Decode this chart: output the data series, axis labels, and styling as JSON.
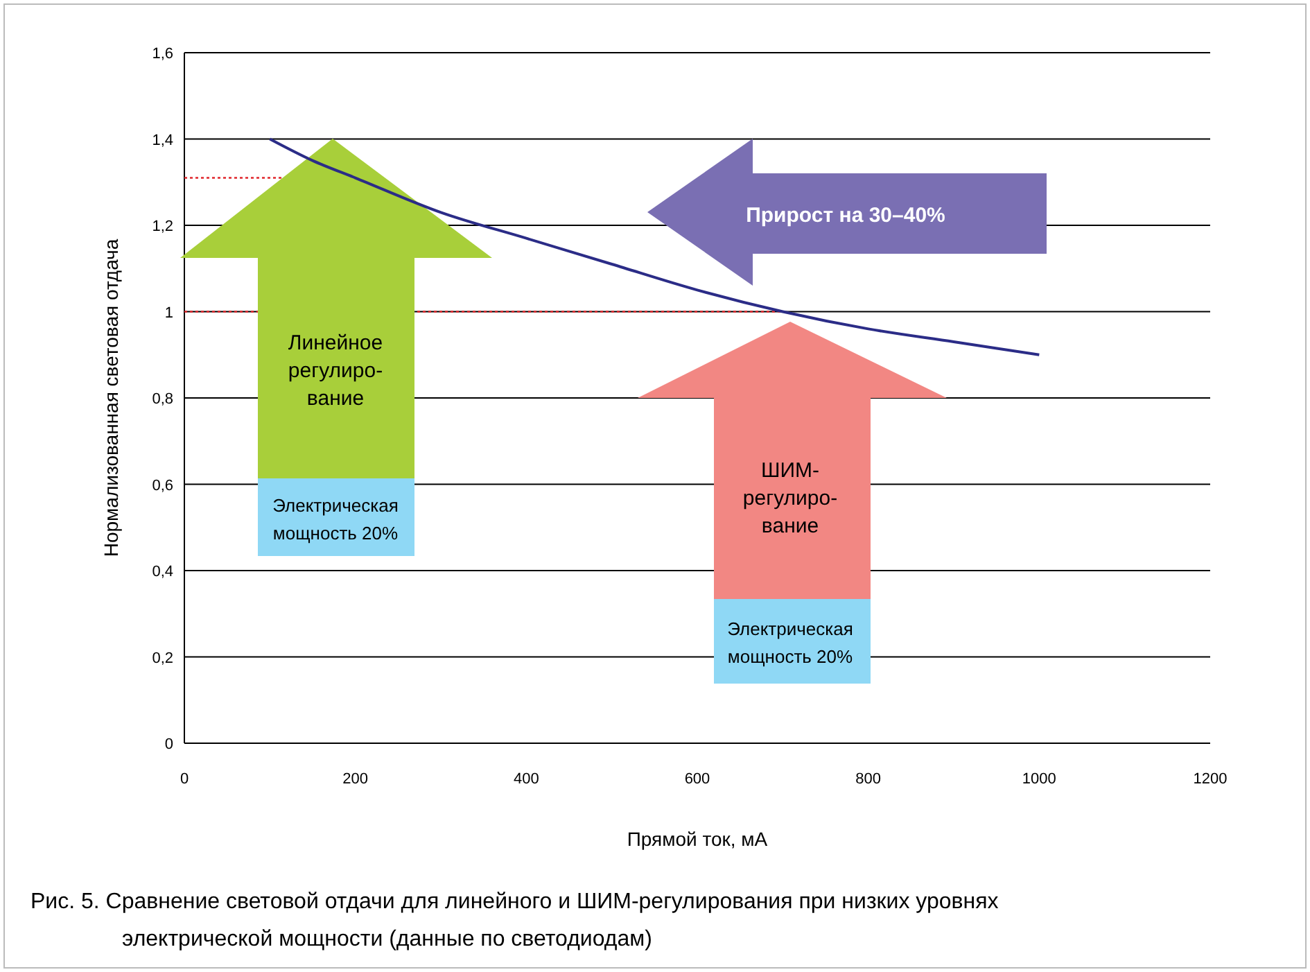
{
  "chart_data": {
    "type": "line",
    "title": "Рис. 5. Сравнение световой отдачи для линейного и ШИМ-регулирования при низких уровнях электрической мощности (данные по светодиодам)",
    "xlabel": "Прямой ток, мА",
    "ylabel": "Нормализованная световая отдача",
    "x": [
      100,
      150,
      200,
      300,
      400,
      500,
      600,
      700,
      800,
      900,
      1000
    ],
    "series": [
      {
        "color": "#2b2c87",
        "values": [
          1.4,
          1.35,
          1.31,
          1.23,
          1.17,
          1.11,
          1.05,
          1.0,
          0.96,
          0.93,
          0.9
        ]
      }
    ],
    "xlim": [
      0,
      1200
    ],
    "xticks": [
      0,
      200,
      400,
      600,
      800,
      1000,
      1200
    ],
    "ylim": [
      0,
      1.6
    ],
    "yticks": [
      0,
      {
        "value": 0.2,
        "label": "0,2"
      },
      {
        "value": 0.4,
        "label": "0,4"
      },
      {
        "value": 0.6,
        "label": "0,6"
      },
      {
        "value": 0.8,
        "label": "0,8"
      },
      1,
      {
        "value": 1.2,
        "label": "1,2"
      },
      {
        "value": 1.4,
        "label": "1,4"
      },
      {
        "value": 1.6,
        "label": "1,6"
      }
    ],
    "grid": "y",
    "marker": "none",
    "line_style": "solid",
    "ref_lines": [
      {
        "axis": "y",
        "value": 1.31,
        "color": "#e0262b",
        "line_style": "dotted"
      },
      {
        "axis": "y",
        "value": 1,
        "color": "#e0262b",
        "line_style": "dotted"
      }
    ],
    "annotations": [
      "Прирост на 30–40%",
      "Линейное\nрегулиро-\nвание",
      "Электрическая\nмощность 20%",
      "ШИМ-\nрегулиро-\nвание",
      "Электрическая\nмощность 20%"
    ]
  }
}
